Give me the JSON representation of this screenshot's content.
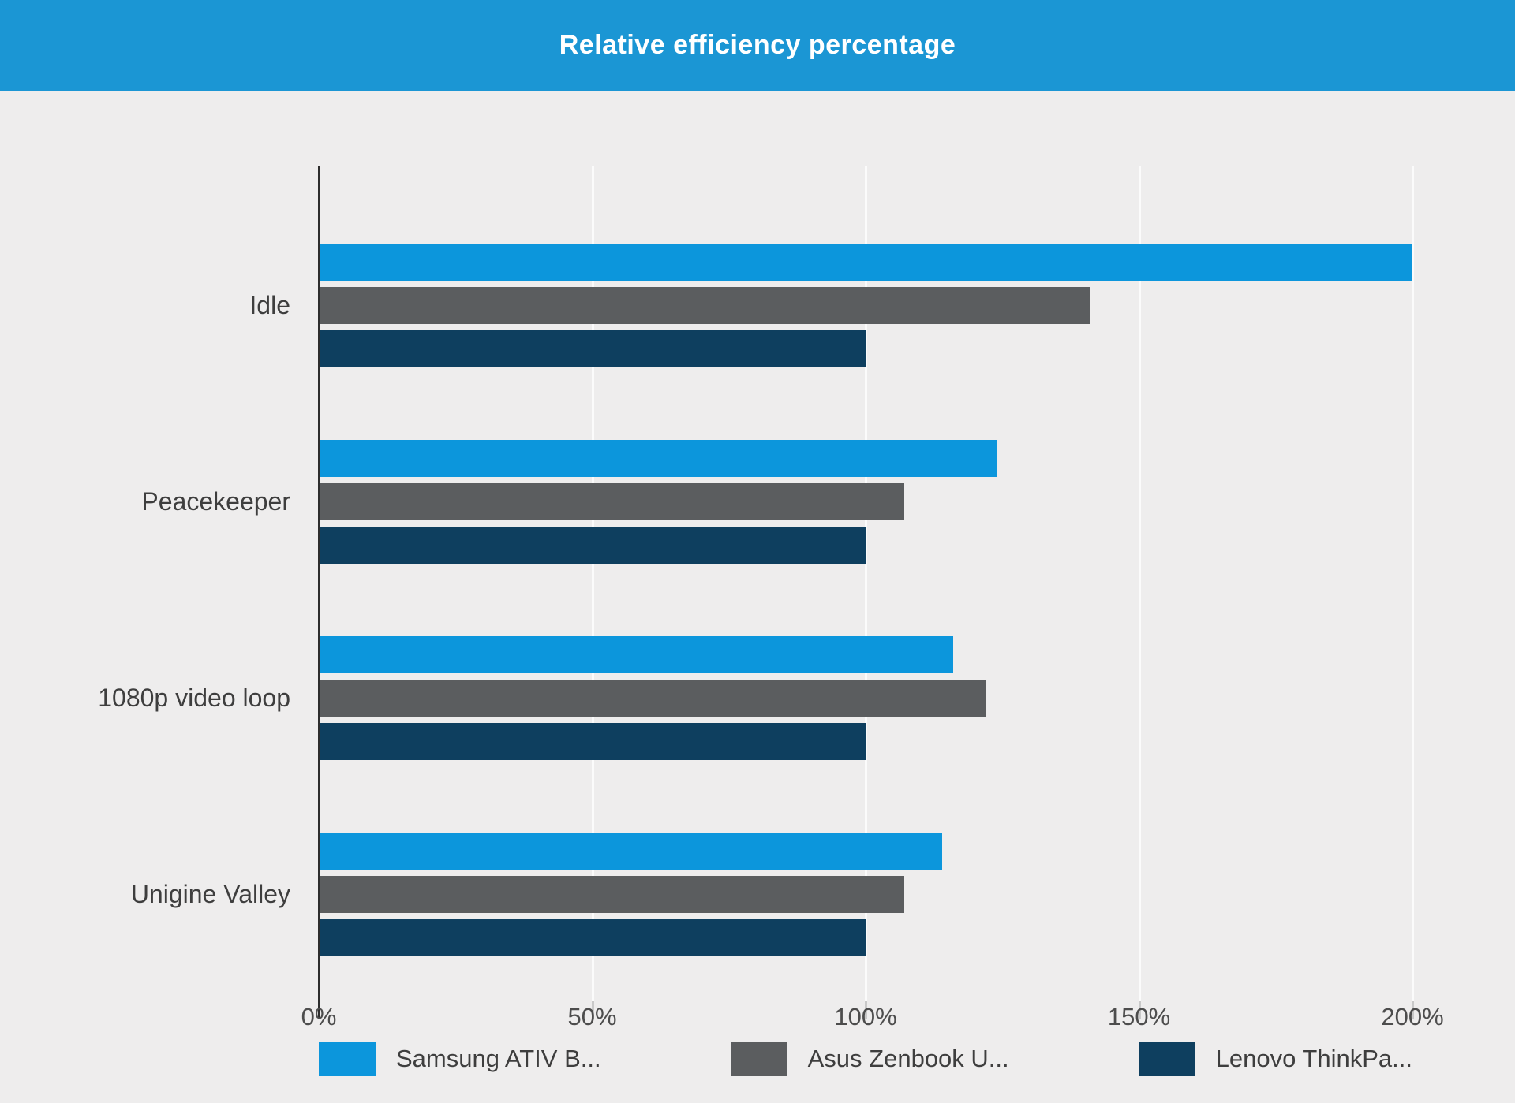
{
  "title": "Relative efficiency percentage",
  "colors": {
    "header_background": "#1b96d4",
    "chart_background": "#eeeded",
    "axis_line": "#2d2d2d",
    "gridline": "#fbfbfb",
    "series_blue": "#0c96dc",
    "series_gray": "#5b5d5f",
    "series_navy": "#0e3f5f"
  },
  "chart_data": {
    "type": "bar",
    "orientation": "horizontal",
    "title": "Relative efficiency percentage",
    "categories": [
      "Idle",
      "Peacekeeper",
      "1080p video loop",
      "Unigine Valley"
    ],
    "series": [
      {
        "name": "Samsung ATIV B...",
        "color": "#0c96dc",
        "values": [
          200,
          124,
          116,
          114
        ]
      },
      {
        "name": "Asus Zenbook U...",
        "color": "#5b5d5f",
        "values": [
          141,
          107,
          122,
          107
        ]
      },
      {
        "name": "Lenovo ThinkPa...",
        "color": "#0e3f5f",
        "values": [
          100,
          100,
          100,
          100
        ]
      }
    ],
    "xlabel": "",
    "ylabel": "",
    "xlim": [
      0,
      200
    ],
    "x_tick_labels": [
      "0%",
      "50%",
      "100%",
      "150%",
      "200%"
    ],
    "x_tick_values": [
      0,
      50,
      100,
      150,
      200
    ],
    "grid": true,
    "legend_position": "bottom",
    "unit": "percent"
  }
}
